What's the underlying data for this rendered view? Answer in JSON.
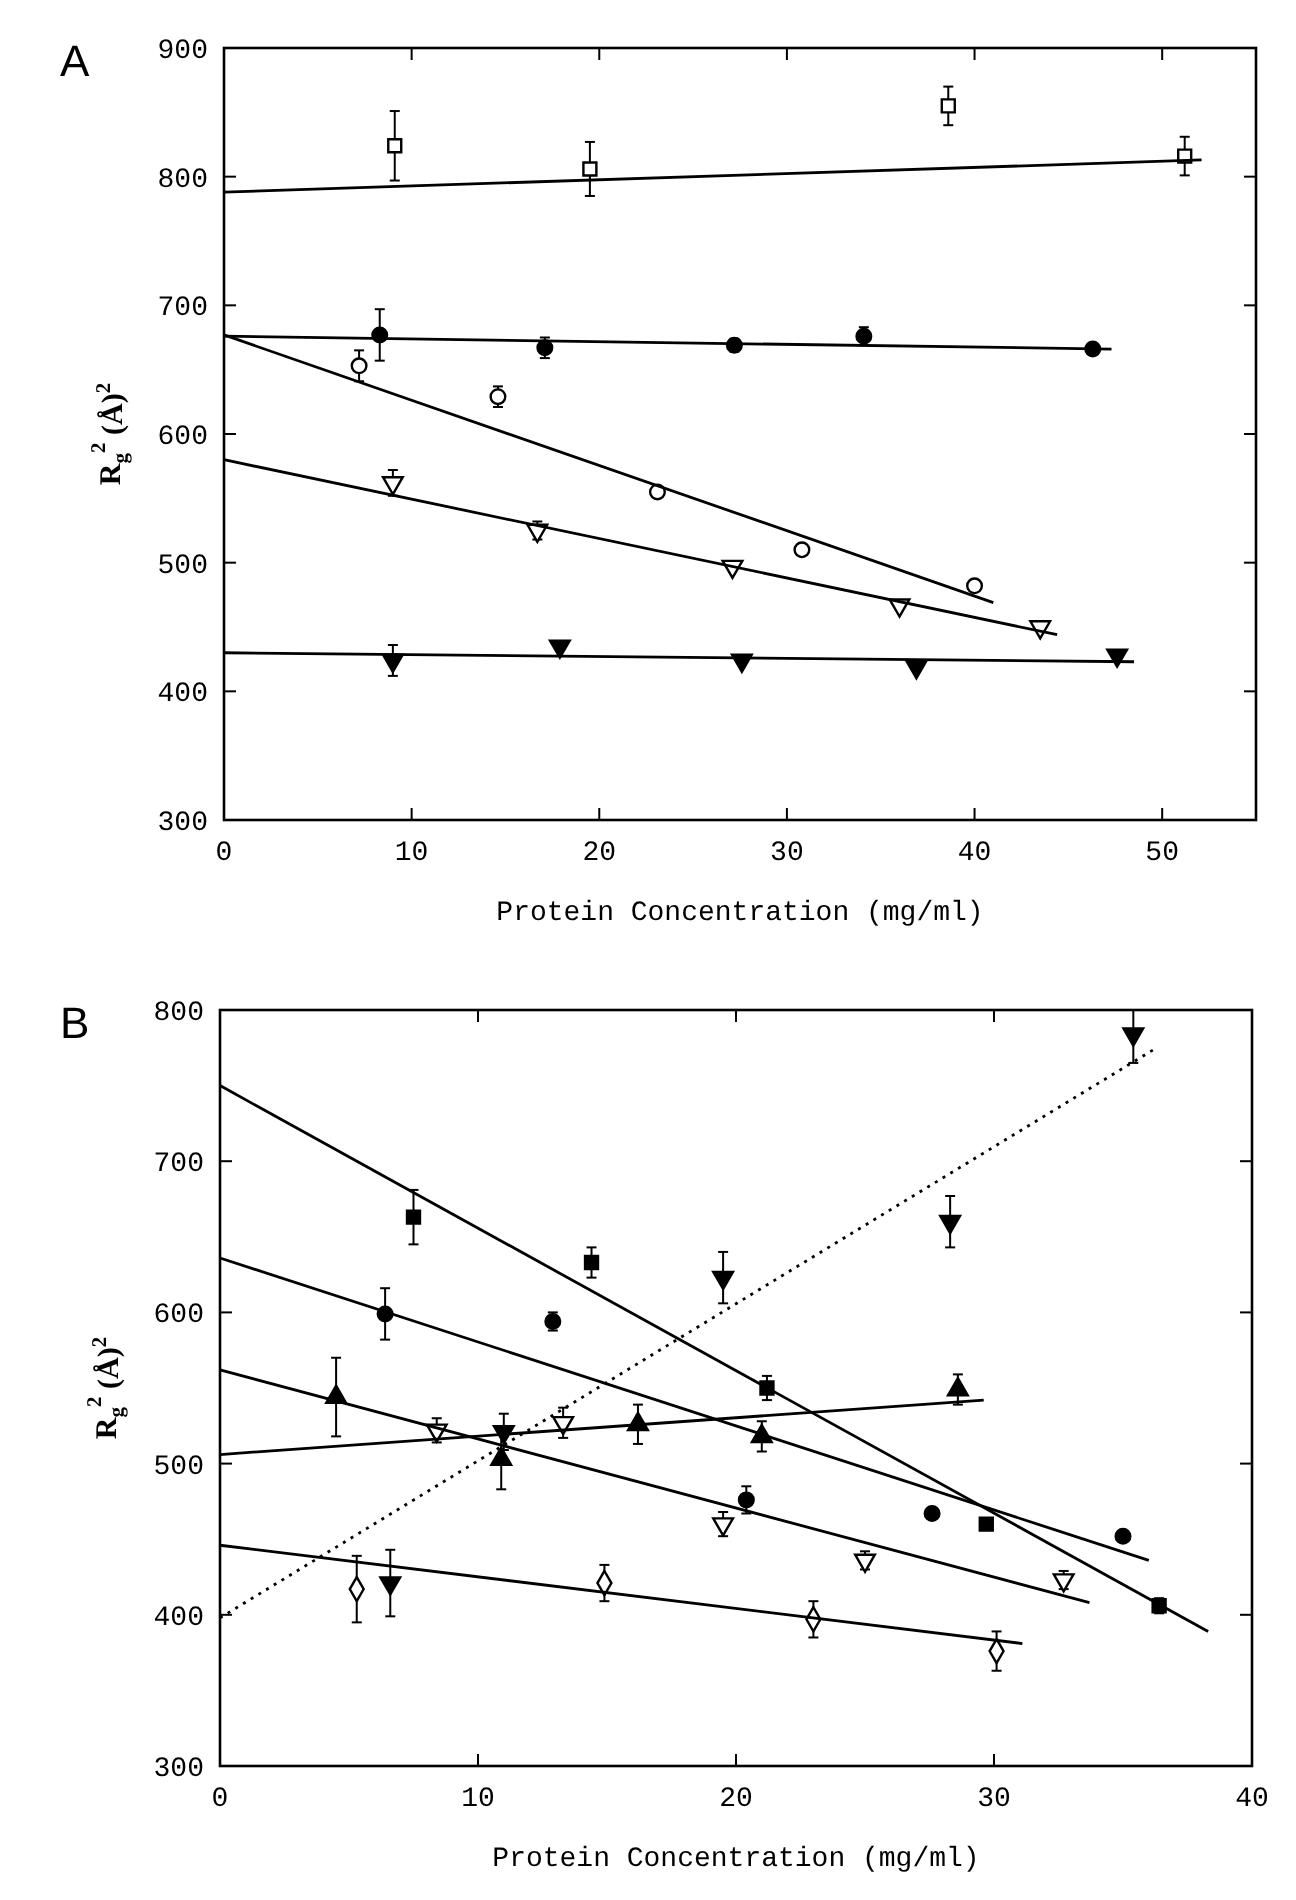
{
  "chart_data": [
    {
      "type": "scatter",
      "title": "A",
      "xlabel": "Protein Concentration (mg/ml)",
      "ylabel": "R$_{g}$$^{2}$ (Å)$^{2}$",
      "xlim": [
        0,
        55
      ],
      "xticks": [
        0,
        10,
        20,
        30,
        40,
        50
      ],
      "ylim": [
        300,
        900
      ],
      "yticks": [
        300,
        400,
        500,
        600,
        700,
        800,
        900
      ],
      "grid": false,
      "series": [
        {
          "marker": "square",
          "color": "#ffffff",
          "x": [
            9.1,
            19.5,
            38.6,
            51.2
          ],
          "values": [
            824,
            806,
            855,
            816
          ],
          "errors": [
            27,
            21,
            15,
            15
          ]
        },
        {
          "type": "scatter",
          "marker": "circle",
          "color": "#000000",
          "x": [
            8.3,
            17.1,
            27.2,
            34.1,
            46.3
          ],
          "values": [
            677,
            667,
            669,
            676,
            666
          ],
          "errors": [
            20,
            8,
            5,
            7,
            null
          ]
        },
        {
          "type": "scatter",
          "marker": "circle",
          "color": "#ffffff",
          "x": [
            7.2,
            14.6,
            23.1,
            30.8,
            40.0
          ],
          "values": [
            653,
            629,
            555,
            510,
            482
          ],
          "errors": [
            12,
            8,
            null,
            null,
            null
          ]
        },
        {
          "type": "scatter",
          "marker": "triangle-down",
          "color": "#ffffff",
          "x": [
            9.0,
            16.7,
            27.1,
            36.0,
            43.5
          ],
          "values": [
            562,
            525,
            497,
            467,
            450
          ],
          "errors": [
            10,
            7,
            null,
            null,
            null
          ]
        },
        {
          "type": "scatter",
          "marker": "triangle-down",
          "color": "#000000",
          "x": [
            9.0,
            17.9,
            27.6,
            36.9,
            47.6
          ],
          "values": [
            424,
            435,
            424,
            419,
            428
          ],
          "errors": [
            12,
            null,
            null,
            null,
            null
          ]
        },
        {
          "type": "line",
          "line_style": "solid",
          "color": "#000000",
          "x": [
            0,
            52.1
          ],
          "values": [
            788,
            813
          ]
        },
        {
          "type": "line",
          "line_style": "solid",
          "color": "#000000",
          "x": [
            0,
            47.3
          ],
          "values": [
            676,
            666
          ]
        },
        {
          "type": "line",
          "line_style": "solid",
          "color": "#000000",
          "x": [
            0,
            41.0
          ],
          "values": [
            677,
            469
          ]
        },
        {
          "type": "line",
          "line_style": "solid",
          "color": "#000000",
          "x": [
            0,
            44.4
          ],
          "values": [
            580,
            444
          ]
        },
        {
          "type": "line",
          "line_style": "solid",
          "color": "#000000",
          "x": [
            0,
            48.5
          ],
          "values": [
            430,
            423
          ]
        }
      ]
    },
    {
      "type": "scatter",
      "title": "B",
      "xlabel": "Protein Concentration (mg/ml)",
      "ylabel": "R$_{g}$$^{2}$ (Å)$^{2}$",
      "xlim": [
        0,
        40
      ],
      "xticks": [
        0,
        10,
        20,
        30,
        40
      ],
      "ylim": [
        300,
        800
      ],
      "yticks": [
        300,
        400,
        500,
        600,
        700,
        800
      ],
      "grid": false,
      "series": [
        {
          "marker": "square",
          "color": "#000000",
          "x": [
            7.5,
            14.4,
            21.2,
            29.7,
            36.4
          ],
          "values": [
            663,
            633,
            550,
            460,
            406
          ],
          "errors": [
            18,
            10,
            8,
            null,
            5
          ]
        },
        {
          "type": "scatter",
          "marker": "circle",
          "color": "#000000",
          "x": [
            6.4,
            12.9,
            20.4,
            27.6,
            35.0
          ],
          "values": [
            599,
            594,
            476,
            467,
            452
          ],
          "errors": [
            17,
            6,
            9,
            null,
            null
          ]
        },
        {
          "type": "scatter",
          "marker": "triangle",
          "color": "#000000",
          "x": [
            4.5,
            10.9,
            16.2,
            21.0,
            28.6
          ],
          "values": [
            544,
            503,
            526,
            518,
            549
          ],
          "errors": [
            26,
            20,
            13,
            10,
            10
          ]
        },
        {
          "type": "scatter",
          "marker": "triangle-down",
          "color": "#ffffff",
          "x": [
            8.4,
            13.3,
            19.5,
            25.0,
            32.7
          ],
          "values": [
            522,
            527,
            460,
            436,
            423
          ],
          "errors": [
            8,
            10,
            8,
            6,
            6
          ]
        },
        {
          "type": "scatter",
          "marker": "diamond",
          "color": "#ffffff",
          "x": [
            5.3,
            14.9,
            23.0,
            30.1
          ],
          "values": [
            417,
            421,
            397,
            376
          ],
          "errors": [
            22,
            12,
            12,
            13
          ]
        },
        {
          "type": "scatter",
          "marker": "triangle-down",
          "color": "#000000",
          "x": [
            6.6,
            11.0,
            19.5,
            28.3,
            35.4
          ],
          "values": [
            421,
            521,
            623,
            660,
            784
          ],
          "errors": [
            22,
            12,
            17,
            17,
            [
              765,
              800
            ]
          ]
        },
        {
          "type": "line",
          "line_style": "solid",
          "color": "#000000",
          "x": [
            0,
            38.3
          ],
          "values": [
            750,
            389
          ]
        },
        {
          "type": "line",
          "line_style": "solid",
          "color": "#000000",
          "x": [
            0,
            36.0
          ],
          "values": [
            636,
            436
          ]
        },
        {
          "type": "line",
          "line_style": "solid",
          "color": "#000000",
          "x": [
            0,
            29.6
          ],
          "values": [
            506,
            542
          ]
        },
        {
          "type": "line",
          "line_style": "solid",
          "color": "#000000",
          "x": [
            0,
            33.7
          ],
          "values": [
            562,
            408
          ]
        },
        {
          "type": "line",
          "line_style": "solid",
          "color": "#000000",
          "x": [
            0,
            31.1
          ],
          "values": [
            446,
            381
          ]
        },
        {
          "type": "line",
          "line_style": "dotted",
          "color": "#000000",
          "x": [
            0,
            36.3
          ],
          "values": [
            398,
            775
          ]
        }
      ]
    }
  ]
}
